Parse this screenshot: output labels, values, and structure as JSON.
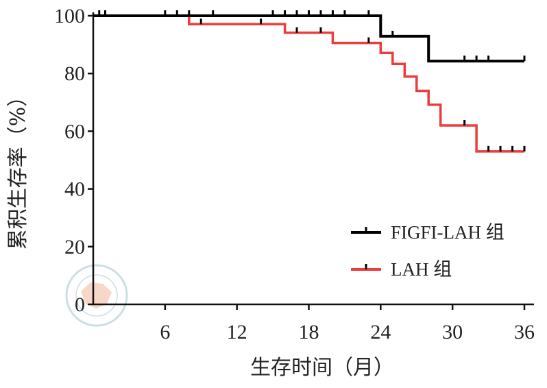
{
  "chart_data": {
    "type": "line",
    "title": "",
    "xlabel": "生存时间（月）",
    "ylabel": "累积生存率（%）",
    "xlim": [
      0,
      36
    ],
    "ylim": [
      0,
      100
    ],
    "x_ticks": [
      "6",
      "12",
      "18",
      "24",
      "30",
      "36"
    ],
    "y_ticks": [
      "0",
      "20",
      "40",
      "60",
      "80",
      "100"
    ],
    "grid": false,
    "legend_position": "bottom-right",
    "series": [
      {
        "name": "FIGFI-LAH 组",
        "color": "#000000",
        "step": [
          [
            0,
            100
          ],
          [
            24,
            100
          ],
          [
            24,
            92.9
          ],
          [
            28,
            92.9
          ],
          [
            28,
            84.3
          ],
          [
            36,
            84.3
          ]
        ],
        "censored": [
          [
            0.5,
            100
          ],
          [
            1,
            100
          ],
          [
            6,
            100
          ],
          [
            7,
            100
          ],
          [
            8,
            100
          ],
          [
            10,
            100
          ],
          [
            15,
            100
          ],
          [
            16,
            100
          ],
          [
            17,
            100
          ],
          [
            18,
            100
          ],
          [
            19,
            100
          ],
          [
            20,
            100
          ],
          [
            21,
            100
          ],
          [
            23,
            100
          ],
          [
            25,
            92.9
          ],
          [
            31,
            84.3
          ],
          [
            32,
            84.3
          ],
          [
            33,
            84.3
          ],
          [
            36,
            84.3
          ]
        ]
      },
      {
        "name": "LAH 组",
        "color": "#ee3b3b",
        "step": [
          [
            0,
            100
          ],
          [
            8,
            100
          ],
          [
            8,
            97.1
          ],
          [
            16,
            97.1
          ],
          [
            16,
            94.1
          ],
          [
            20,
            94.1
          ],
          [
            20,
            90.6
          ],
          [
            24,
            90.6
          ],
          [
            24,
            87.1
          ],
          [
            25,
            87.1
          ],
          [
            25,
            83.3
          ],
          [
            26,
            83.3
          ],
          [
            26,
            78.9
          ],
          [
            27,
            78.9
          ],
          [
            27,
            74.0
          ],
          [
            28,
            74.0
          ],
          [
            28,
            69.2
          ],
          [
            29,
            69.2
          ],
          [
            29,
            62.0
          ],
          [
            32,
            62.0
          ],
          [
            32,
            53.0
          ],
          [
            36,
            53.0
          ]
        ],
        "censored": [
          [
            9,
            97.1
          ],
          [
            14,
            97.1
          ],
          [
            17,
            94.1
          ],
          [
            19,
            94.1
          ],
          [
            23,
            90.6
          ],
          [
            31,
            62.0
          ],
          [
            33,
            53.0
          ],
          [
            34,
            53.0
          ],
          [
            35,
            53.0
          ],
          [
            36,
            53.0
          ]
        ]
      }
    ]
  }
}
